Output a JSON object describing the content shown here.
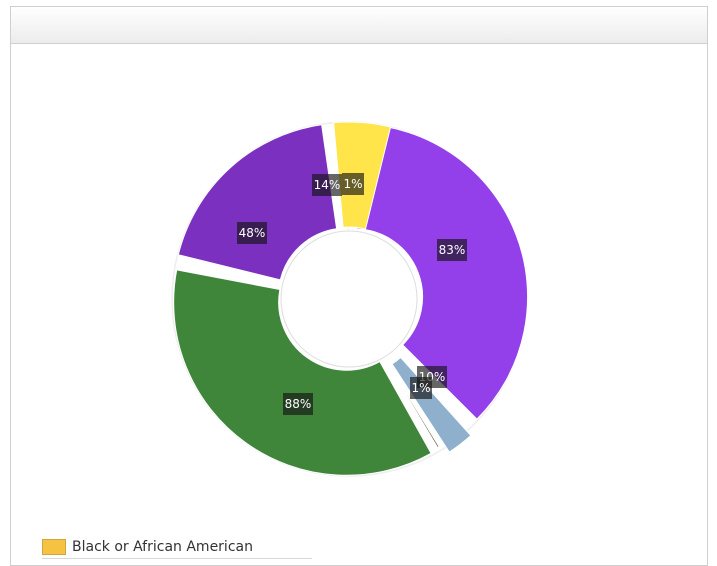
{
  "chart_data": {
    "type": "pie",
    "title": "",
    "slices": [
      {
        "label": "1%",
        "value": 1,
        "color": "#f0c82e",
        "arc_deg": 1.5
      },
      {
        "label": "83%",
        "value": 83,
        "color": "#9340ea",
        "arc_deg": 136
      },
      {
        "label": "10%",
        "value": 10,
        "color": "#8fb0cc",
        "arc_deg": 12
      },
      {
        "label": "1%",
        "value": 1,
        "color": "#3b2200",
        "arc_deg": 0.8
      },
      {
        "label": "88%",
        "value": 88,
        "color": "#3f863a",
        "arc_deg": 133
      },
      {
        "label": "48%",
        "value": 48,
        "color": "#7b30bf",
        "arc_deg": 71
      },
      {
        "label": "14%",
        "value": 14,
        "color": "#ffe44a",
        "arc_deg": 22
      }
    ],
    "legend": [
      {
        "label": "Black or African American",
        "color": "#f5c242"
      }
    ],
    "legend_position": "bottom-left"
  }
}
